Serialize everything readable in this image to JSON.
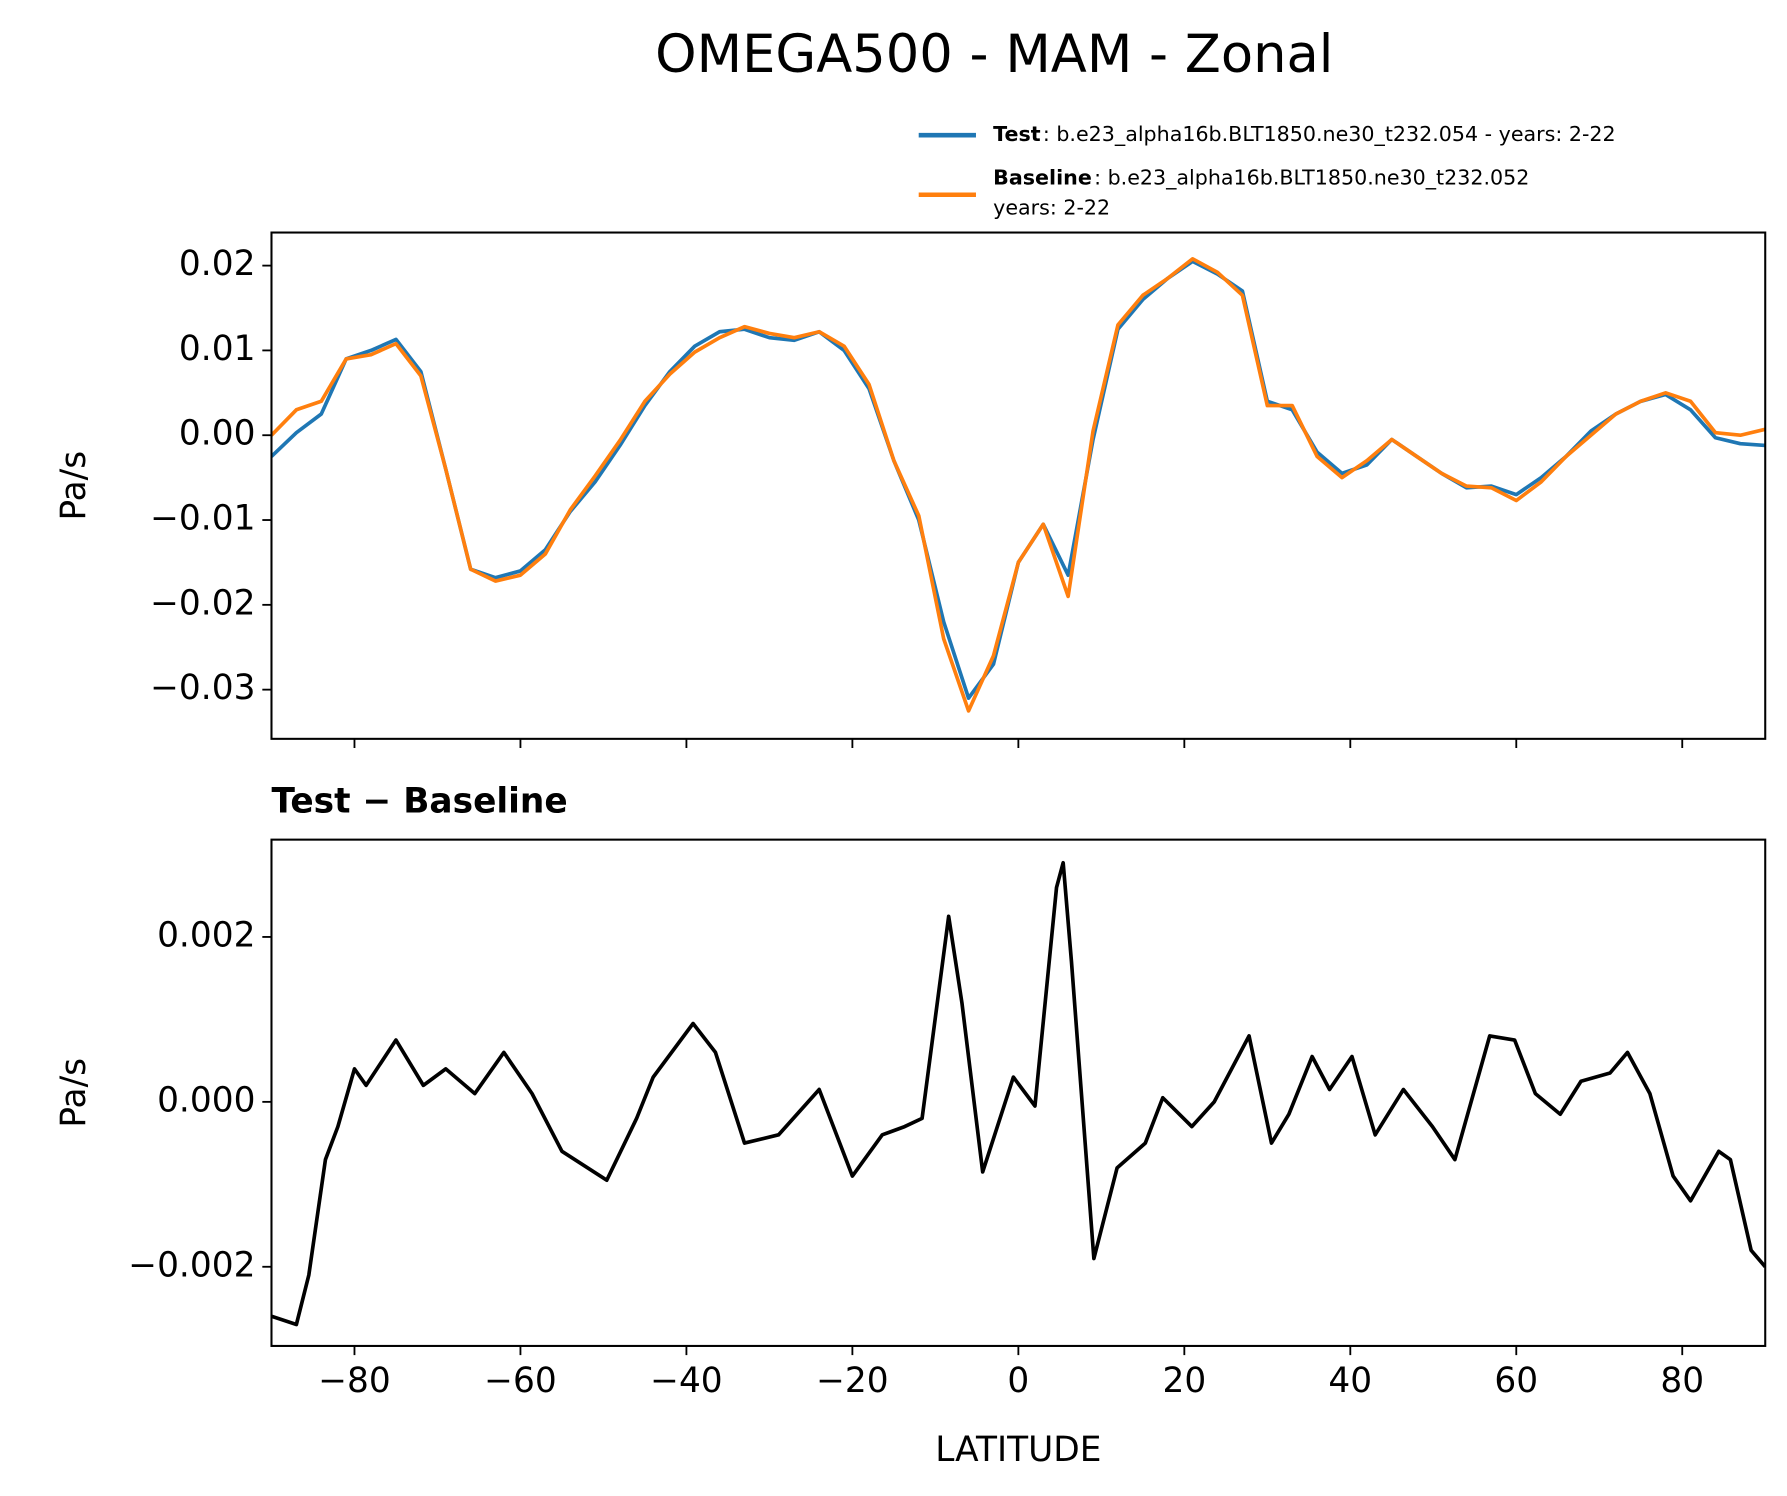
{
  "chart_data": [
    {
      "type": "line",
      "title": "OMEGA500 - MAM - Zonal",
      "ylabel": "Pa/s",
      "x": [
        -90,
        -87,
        -84,
        -81,
        -78,
        -75,
        -72,
        -69,
        -66,
        -63,
        -60,
        -57,
        -54,
        -51,
        -48,
        -45,
        -42,
        -39,
        -36,
        -33,
        -30,
        -27,
        -24,
        -21,
        -18,
        -15,
        -12,
        -9,
        -6,
        -3,
        0,
        3,
        6,
        9,
        12,
        15,
        18,
        21,
        24,
        27,
        30,
        33,
        36,
        39,
        42,
        45,
        48,
        51,
        54,
        57,
        60,
        63,
        66,
        69,
        72,
        75,
        78,
        81,
        84,
        87,
        90
      ],
      "series": [
        {
          "name": "Test",
          "description": [
            ": b.e23_alpha16b.BLT1850.ne30_t232.054 - years: 2-22"
          ],
          "color": "#1f77b4",
          "values": [
            -0.0025,
            0.0003,
            0.0025,
            0.009,
            0.01,
            0.0113,
            0.0075,
            -0.004,
            -0.0158,
            -0.0168,
            -0.016,
            -0.0135,
            -0.009,
            -0.0055,
            -0.0012,
            0.0035,
            0.0075,
            0.0105,
            0.0122,
            0.0125,
            0.0115,
            0.0112,
            0.0122,
            0.01,
            0.0055,
            -0.003,
            -0.01,
            -0.022,
            -0.031,
            -0.027,
            -0.015,
            -0.0105,
            -0.0165,
            -0.0005,
            0.0125,
            0.016,
            0.0185,
            0.0205,
            0.019,
            0.017,
            0.004,
            0.003,
            -0.002,
            -0.0045,
            -0.0035,
            -0.0005,
            -0.0025,
            -0.0045,
            -0.0062,
            -0.006,
            -0.007,
            -0.005,
            -0.0025,
            0.0005,
            0.0025,
            0.004,
            0.0048,
            0.003,
            -0.0003,
            -0.001,
            -0.0012
          ]
        },
        {
          "name": "Baseline",
          "description": [
            ": b.e23_alpha16b.BLT1850.ne30_t232.052",
            "years: 2-22"
          ],
          "color": "#ff7f0e",
          "values": [
            0.0,
            0.003,
            0.004,
            0.009,
            0.0095,
            0.0108,
            0.007,
            -0.004,
            -0.0158,
            -0.0172,
            -0.0165,
            -0.014,
            -0.0088,
            -0.0048,
            -0.0006,
            0.004,
            0.0072,
            0.0098,
            0.0115,
            0.0128,
            0.012,
            0.0115,
            0.0122,
            0.0105,
            0.006,
            -0.003,
            -0.0095,
            -0.024,
            -0.0325,
            -0.026,
            -0.015,
            -0.0105,
            -0.019,
            0.0005,
            0.013,
            0.0165,
            0.0185,
            0.0208,
            0.0192,
            0.0165,
            0.0035,
            0.0035,
            -0.0025,
            -0.005,
            -0.003,
            -0.0005,
            -0.0025,
            -0.0045,
            -0.006,
            -0.0062,
            -0.0077,
            -0.0055,
            -0.0025,
            0.0,
            0.0025,
            0.004,
            0.005,
            0.004,
            0.0003,
            0.0,
            0.0007
          ]
        }
      ],
      "xlim": [
        -90,
        90
      ],
      "ylim": [
        -0.0358,
        0.0239
      ],
      "xticks": [
        -80,
        -60,
        -40,
        -20,
        0,
        20,
        40,
        60,
        80
      ],
      "xticklabels": false,
      "yticks": [
        {
          "value": -0.03,
          "label": "−0.03"
        },
        {
          "value": -0.02,
          "label": "−0.02"
        },
        {
          "value": -0.01,
          "label": "−0.01"
        },
        {
          "value": 0,
          "label": "0.00"
        },
        0.01,
        0.02
      ]
    },
    {
      "type": "line",
      "title": "Test − Baseline",
      "ylabel": "Pa/s",
      "xlabel": "LATITUDE",
      "x": [
        -90,
        -87,
        -85.5,
        -83.5,
        -82,
        -80,
        -78.6,
        -75,
        -71.7,
        -69,
        -65.5,
        -62,
        -58.6,
        -55,
        -49.6,
        -46,
        -44,
        -39.2,
        -36.5,
        -33,
        -28.9,
        -24,
        -20,
        -16.4,
        -13.7,
        -11.6,
        -8.4,
        -6.8,
        -4.3,
        -0.6,
        2,
        4.6,
        5.4,
        6.4,
        9.1,
        11.9,
        15.3,
        17.4,
        20.9,
        23.6,
        27.8,
        30.5,
        32.6,
        35.4,
        37.5,
        40.2,
        43,
        46.4,
        49.9,
        52.6,
        56.8,
        59.8,
        62.3,
        65.3,
        67.8,
        71.3,
        73.4,
        76.1,
        78.9,
        81,
        84.4,
        85.8,
        88.3,
        90
      ],
      "series": [
        {
          "name": "Test − Baseline",
          "color": "#000000",
          "values": [
            -0.0026,
            -0.0027,
            -0.0021,
            -0.0007,
            -0.0003,
            0.0004,
            0.0002,
            0.00075,
            0.0002,
            0.0004,
            0.0001,
            0.0006,
            0.0001,
            -0.0006,
            -0.00095,
            -0.0002,
            0.0003,
            0.00095,
            0.0006,
            -0.0005,
            -0.0004,
            0.00015,
            -0.0009,
            -0.0004,
            -0.0003,
            -0.0002,
            0.00225,
            0.0012,
            -0.00085,
            0.0003,
            -5e-05,
            0.0026,
            0.0029,
            0.0017,
            -0.0019,
            -0.0008,
            -0.0005,
            5e-05,
            -0.0003,
            0.0,
            0.0008,
            -0.0005,
            -0.00015,
            0.00055,
            0.00015,
            0.00055,
            -0.0004,
            0.00015,
            -0.0003,
            -0.0007,
            0.0008,
            0.00075,
            0.0001,
            -0.00015,
            0.00025,
            0.00035,
            0.0006,
            0.0001,
            -0.0009,
            -0.0012,
            -0.0006,
            -0.0007,
            -0.0018,
            -0.002
          ]
        }
      ],
      "xlim": [
        -90,
        90
      ],
      "ylim": [
        -0.00296,
        0.00318
      ],
      "xticks": [
        {
          "value": -80,
          "label": "−80"
        },
        {
          "value": -60,
          "label": "−60"
        },
        {
          "value": -40,
          "label": "−40"
        },
        {
          "value": -20,
          "label": "−20"
        },
        0,
        20,
        40,
        60,
        80
      ],
      "xticklabels": true,
      "yticks": [
        {
          "value": -0.002,
          "label": "−0.002"
        },
        {
          "value": 0,
          "label": "0.000"
        },
        0.002
      ]
    }
  ]
}
